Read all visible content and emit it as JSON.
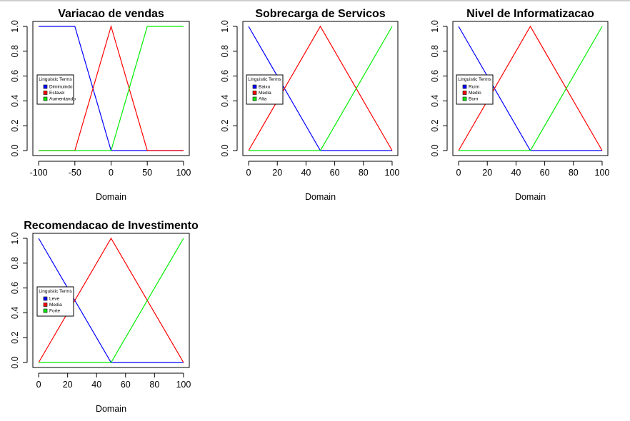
{
  "chart_data": [
    {
      "type": "line",
      "title": "Variacao de vendas",
      "xlabel": "Domain",
      "ylabel": "",
      "xlim": [
        -100,
        100
      ],
      "ylim": [
        0,
        1
      ],
      "xticks": [
        -100,
        -50,
        0,
        50,
        100
      ],
      "yticks": [
        "0.0",
        "0.2",
        "0.4",
        "0.6",
        "0.8",
        "1.0"
      ],
      "legend": {
        "title": "Linguistic Terms",
        "placement": "left"
      },
      "series": [
        {
          "name": "Diminuindo",
          "color": "#0000ff",
          "x": [
            -100,
            -50,
            0,
            100
          ],
          "y": [
            1,
            1,
            0,
            0
          ]
        },
        {
          "name": "Estavel",
          "color": "#ff0000",
          "x": [
            -100,
            -50,
            0,
            50,
            100
          ],
          "y": [
            0,
            0,
            1,
            0,
            0
          ]
        },
        {
          "name": "Aumentando",
          "color": "#00ee00",
          "x": [
            -100,
            0,
            50,
            100
          ],
          "y": [
            0,
            0,
            1,
            1
          ]
        }
      ]
    },
    {
      "type": "line",
      "title": "Sobrecarga de Servicos",
      "xlabel": "Domain",
      "ylabel": "",
      "xlim": [
        0,
        100
      ],
      "ylim": [
        0,
        1
      ],
      "xticks": [
        0,
        20,
        40,
        60,
        80,
        100
      ],
      "yticks": [
        "0.0",
        "0.2",
        "0.4",
        "0.6",
        "0.8",
        "1.0"
      ],
      "legend": {
        "title": "Linguistic Terms",
        "placement": "left"
      },
      "series": [
        {
          "name": "Baixo",
          "color": "#0000ff",
          "x": [
            0,
            50,
            100
          ],
          "y": [
            1,
            0,
            0
          ]
        },
        {
          "name": "Media",
          "color": "#ff0000",
          "x": [
            0,
            50,
            100
          ],
          "y": [
            0,
            1,
            0
          ]
        },
        {
          "name": "Alta",
          "color": "#00ee00",
          "x": [
            0,
            50,
            100
          ],
          "y": [
            0,
            0,
            1
          ]
        }
      ]
    },
    {
      "type": "line",
      "title": "Nivel de Informatizacao",
      "xlabel": "Domain",
      "ylabel": "",
      "xlim": [
        0,
        100
      ],
      "ylim": [
        0,
        1
      ],
      "xticks": [
        0,
        20,
        40,
        60,
        80,
        100
      ],
      "yticks": [
        "0.0",
        "0.2",
        "0.4",
        "0.6",
        "0.8",
        "1.0"
      ],
      "legend": {
        "title": "Linguistic Terms",
        "placement": "left"
      },
      "series": [
        {
          "name": "Ruim",
          "color": "#0000ff",
          "x": [
            0,
            50,
            100
          ],
          "y": [
            1,
            0,
            0
          ]
        },
        {
          "name": "Medio",
          "color": "#ff0000",
          "x": [
            0,
            50,
            100
          ],
          "y": [
            0,
            1,
            0
          ]
        },
        {
          "name": "Bom",
          "color": "#00ee00",
          "x": [
            0,
            50,
            100
          ],
          "y": [
            0,
            0,
            1
          ]
        }
      ]
    },
    {
      "type": "line",
      "title": "Recomendacao de Investimento",
      "xlabel": "Domain",
      "ylabel": "",
      "xlim": [
        0,
        100
      ],
      "ylim": [
        0,
        1
      ],
      "xticks": [
        0,
        20,
        40,
        60,
        80,
        100
      ],
      "yticks": [
        "0.0",
        "0.2",
        "0.4",
        "0.6",
        "0.8",
        "1.0"
      ],
      "legend": {
        "title": "Linguistic Terms",
        "placement": "left"
      },
      "series": [
        {
          "name": "Leve",
          "color": "#0000ff",
          "x": [
            0,
            50,
            100
          ],
          "y": [
            1,
            0,
            0
          ]
        },
        {
          "name": "Media",
          "color": "#ff0000",
          "x": [
            0,
            50,
            100
          ],
          "y": [
            0,
            1,
            0
          ]
        },
        {
          "name": "Forte",
          "color": "#00ee00",
          "x": [
            0,
            50,
            100
          ],
          "y": [
            0,
            0,
            1
          ]
        }
      ]
    }
  ]
}
